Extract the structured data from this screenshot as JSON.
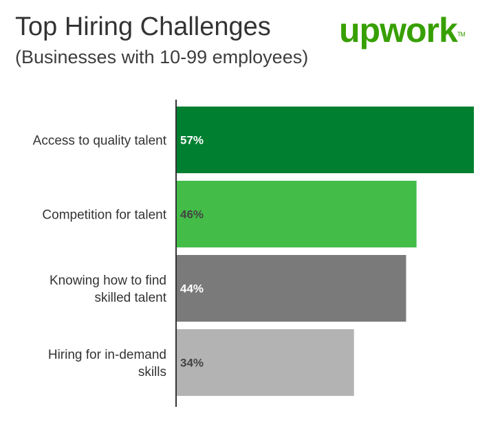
{
  "header": {
    "title": "Top Hiring Challenges",
    "subtitle": "(Businesses with 10-99 employees)"
  },
  "logo": {
    "text_up": "up",
    "text_work": "work",
    "tm": "TM"
  },
  "chart_data": {
    "type": "bar",
    "orientation": "horizontal",
    "title": "Top Hiring Challenges",
    "subtitle": "(Businesses with 10-99 employees)",
    "categories": [
      [
        "Access to quality talent"
      ],
      [
        "Competition for talent"
      ],
      [
        "Knowing how to find",
        "skilled talent"
      ],
      [
        "Hiring for in-demand",
        "skills"
      ]
    ],
    "values": [
      57,
      46,
      44,
      34
    ],
    "value_labels": [
      "57%",
      "46%",
      "44%",
      "34%"
    ],
    "colors": [
      "#007f30",
      "#43bd48",
      "#7a7a7a",
      "#b3b3b3"
    ],
    "label_colors": [
      "#ffffff",
      "#444444",
      "#ffffff",
      "#444444"
    ],
    "xlim": [
      0,
      57
    ],
    "grid": false,
    "legend": "none"
  }
}
